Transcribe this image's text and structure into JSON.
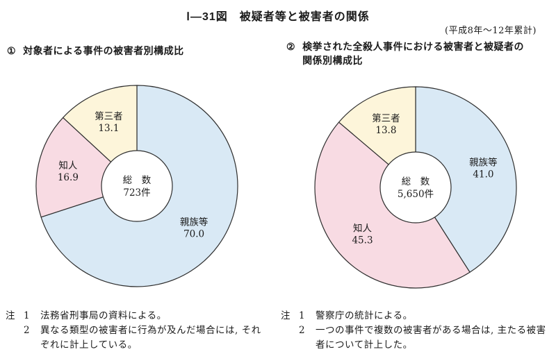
{
  "title": "Ⅰ―31図　被疑者等と被害者の関係",
  "subtitle": "(平成8年～12年累計)",
  "stroke_color": "#2e2e2e",
  "chart_data": [
    {
      "type": "pie",
      "donut": true,
      "num": "①",
      "heading": "対象者による事件の被害者別構成比",
      "categories": [
        "親族等",
        "知人",
        "第三者"
      ],
      "values": [
        70.0,
        16.9,
        13.1
      ],
      "colors": [
        "#d9e9f5",
        "#f8dbe3",
        "#fdf5da"
      ],
      "start_angle": "top",
      "direction": "clockwise",
      "center_label": "総　数",
      "center_value": "723件",
      "notes": {
        "label": "注",
        "items": [
          {
            "num": "1",
            "text": "法務省刑事局の資料による。"
          },
          {
            "num": "2",
            "text": "異なる類型の被害者に行為が及んだ場合には, それぞれに計上している。"
          }
        ]
      }
    },
    {
      "type": "pie",
      "donut": true,
      "num": "②",
      "heading": "検挙された全殺人事件における被害者と被疑者の関係別構成比",
      "categories": [
        "親族等",
        "知人",
        "第三者"
      ],
      "values": [
        41.0,
        45.3,
        13.8
      ],
      "colors": [
        "#d9e9f5",
        "#f8dbe3",
        "#fdf5da"
      ],
      "start_angle": "top",
      "direction": "clockwise",
      "center_label": "総　数",
      "center_value": "5,650件",
      "notes": {
        "label": "注",
        "items": [
          {
            "num": "1",
            "text": "警察庁の統計による。"
          },
          {
            "num": "2",
            "text": "一つの事件で複数の被害者がある場合は, 主たる被害者について計上した。"
          }
        ]
      }
    }
  ]
}
